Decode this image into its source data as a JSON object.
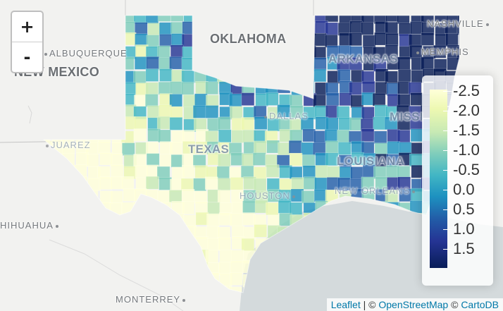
{
  "map": {
    "zoom_in_label": "+",
    "zoom_out_label": "-",
    "labels": {
      "oklahoma": "OKLAHOMA",
      "new_mexico": "NEW MEXICO",
      "texas": "TEXAS",
      "louisiana": "LOUISIANA",
      "arkansas": "ARKANSAS",
      "mississippi": "MISSI",
      "albuquerque": "ALBUQUERQUE",
      "nashville": "NASHVILLE",
      "memphis": "MEMPHIS",
      "dallas": "DALLAS",
      "juarez": "JUAREZ",
      "houston": "HOUSTON",
      "new_orleans": "NEW ORLEANS",
      "chihuahua": "HIHUAHUA",
      "monterrey": "MONTERREY"
    },
    "colors": {
      "land": "#f2f2f0",
      "water": "#d4dadc",
      "ramp": [
        "#ffffd9",
        "#edf8b1",
        "#c7e9b4",
        "#7fcdbb",
        "#41b6c4",
        "#1d91c0",
        "#225ea8",
        "#253494",
        "#081d58"
      ]
    }
  },
  "legend": {
    "ticks": [
      "-2.5",
      "-2.0",
      "-1.5",
      "-1.0",
      "-0.5",
      "0.0",
      "0.5",
      "1.0",
      "1.5"
    ]
  },
  "attribution": {
    "leaflet": "Leaflet",
    "separator": " | © ",
    "osm": "OpenStreetMap",
    "separator2": " © ",
    "carto": "CartoDB"
  }
}
